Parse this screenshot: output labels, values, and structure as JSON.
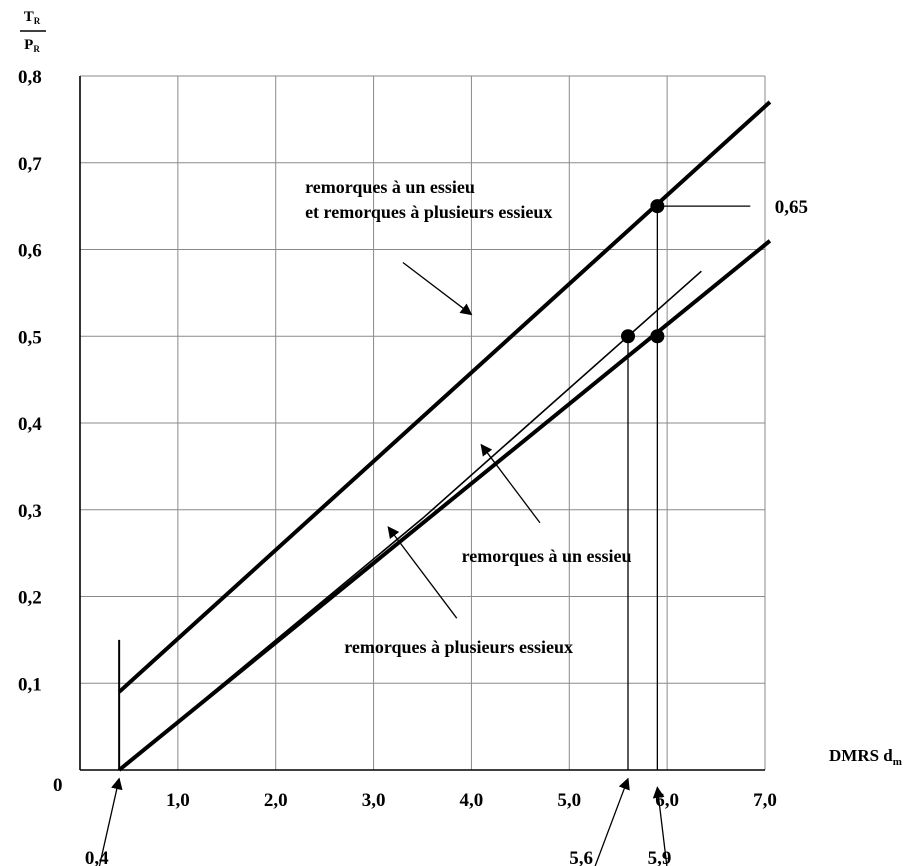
{
  "chart_data": {
    "type": "line",
    "y_axis_label": {
      "numerator": "T",
      "numerator_sub": "R",
      "denominator": "P",
      "denominator_sub": "R"
    },
    "x_axis_label": {
      "text": "DMRS d",
      "sub": "m"
    },
    "origin_label": "0",
    "xlim": [
      0,
      7.0
    ],
    "ylim": [
      0,
      0.8
    ],
    "grid": true,
    "x_ticks": [
      {
        "value": 1,
        "label": "1,0"
      },
      {
        "value": 2,
        "label": "2,0"
      },
      {
        "value": 3,
        "label": "3,0"
      },
      {
        "value": 4,
        "label": "4,0"
      },
      {
        "value": 5,
        "label": "5,0"
      },
      {
        "value": 6,
        "label": "6,0"
      },
      {
        "value": 7,
        "label": "7,0"
      }
    ],
    "y_ticks": [
      {
        "value": 0.1,
        "label": "0,1"
      },
      {
        "value": 0.2,
        "label": "0,2"
      },
      {
        "value": 0.3,
        "label": "0,3"
      },
      {
        "value": 0.4,
        "label": "0,4"
      },
      {
        "value": 0.5,
        "label": "0,5"
      },
      {
        "value": 0.6,
        "label": "0,6"
      },
      {
        "value": 0.7,
        "label": "0,7"
      },
      {
        "value": 0.8,
        "label": "0,8"
      }
    ],
    "series": [
      {
        "key": "upper",
        "width": 4,
        "points": [
          [
            0.4,
            0.09
          ],
          [
            7.05,
            0.77
          ]
        ]
      },
      {
        "key": "single",
        "width": 1.6,
        "points": [
          [
            0.4,
            0.0
          ],
          [
            3.5,
            0.29
          ],
          [
            6.35,
            0.575
          ]
        ]
      },
      {
        "key": "multi",
        "width": 4,
        "points": [
          [
            0.4,
            0.0
          ],
          [
            7.05,
            0.61
          ]
        ]
      },
      {
        "key": "start_bar",
        "width": 2,
        "points": [
          [
            0.4,
            0.0
          ],
          [
            0.4,
            0.15
          ]
        ]
      }
    ],
    "markers": [
      {
        "x": 5.9,
        "y": 0.65
      },
      {
        "x": 5.6,
        "y": 0.5
      },
      {
        "x": 5.9,
        "y": 0.5
      }
    ],
    "reference_lines": [
      {
        "points": [
          [
            5.9,
            0.65
          ],
          [
            6.85,
            0.65
          ]
        ]
      },
      {
        "points": [
          [
            5.9,
            0.65
          ],
          [
            5.9,
            0.0
          ]
        ]
      },
      {
        "points": [
          [
            5.6,
            0.5
          ],
          [
            5.6,
            0.0
          ]
        ]
      }
    ],
    "value_labels": [
      {
        "text": "0,65",
        "x": 7.1,
        "y": 0.65
      },
      {
        "text": "0,4",
        "x": 0.05,
        "y": -0.1
      },
      {
        "text": "5,6",
        "x": 5.0,
        "y": -0.1
      },
      {
        "text": "5,9",
        "x": 5.8,
        "y": -0.1
      }
    ],
    "annotations": [
      {
        "lines": [
          "remorques à un essieu",
          "et remorques à plusieurs essieux"
        ],
        "x": 2.3,
        "y": 0.665,
        "arrow_from": [
          3.3,
          0.585
        ],
        "arrow_to": [
          4.0,
          0.525
        ]
      },
      {
        "lines": [
          "remorques à un essieu"
        ],
        "x": 3.9,
        "y": 0.24,
        "arrow_from": [
          4.7,
          0.285
        ],
        "arrow_to": [
          4.1,
          0.375
        ]
      },
      {
        "lines": [
          "remorques à plusieurs essieux"
        ],
        "x": 2.7,
        "y": 0.135,
        "arrow_from": [
          3.85,
          0.175
        ],
        "arrow_to": [
          3.15,
          0.28
        ]
      }
    ],
    "pointer_arrows": [
      {
        "from": [
          0.1,
          -0.16
        ],
        "to": [
          0.4,
          -0.01
        ]
      },
      {
        "from": [
          5.1,
          -0.16
        ],
        "to": [
          5.6,
          -0.01
        ]
      },
      {
        "from": [
          6.05,
          -0.16
        ],
        "to": [
          5.9,
          -0.02
        ]
      }
    ]
  }
}
